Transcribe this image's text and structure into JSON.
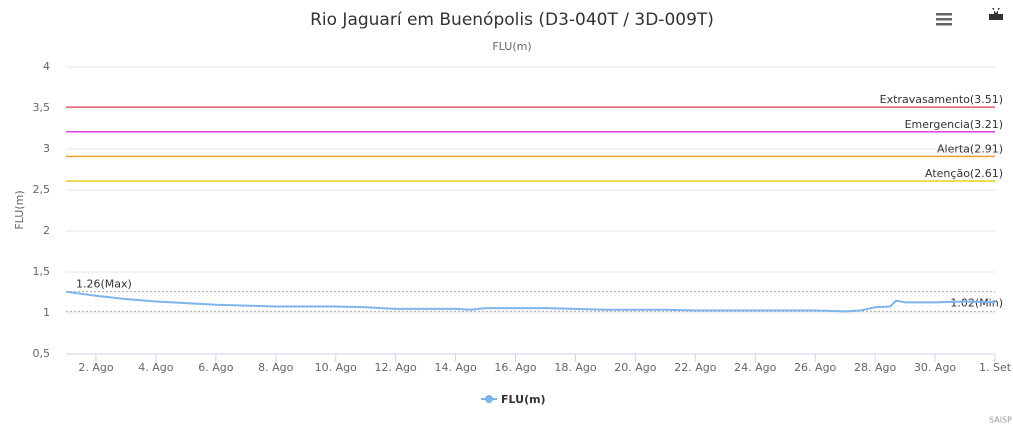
{
  "chart_data": {
    "type": "line",
    "title": "Rio Jaguarí em Buenópolis (D3-040T / 3D-009T)",
    "subtitle": "FLU(m)",
    "y_axis_label": "FLU(m)",
    "credit": "SAISP",
    "xlim": [
      1,
      32
    ],
    "xticks": [
      {
        "value": 2,
        "label": "2. Ago"
      },
      {
        "value": 4,
        "label": "4. Ago"
      },
      {
        "value": 6,
        "label": "6. Ago"
      },
      {
        "value": 8,
        "label": "8. Ago"
      },
      {
        "value": 10,
        "label": "10. Ago"
      },
      {
        "value": 12,
        "label": "12. Ago"
      },
      {
        "value": 14,
        "label": "14. Ago"
      },
      {
        "value": 16,
        "label": "16. Ago"
      },
      {
        "value": 18,
        "label": "18. Ago"
      },
      {
        "value": 20,
        "label": "20. Ago"
      },
      {
        "value": 22,
        "label": "22. Ago"
      },
      {
        "value": 24,
        "label": "24. Ago"
      },
      {
        "value": 26,
        "label": "26. Ago"
      },
      {
        "value": 28,
        "label": "28. Ago"
      },
      {
        "value": 30,
        "label": "30. Ago"
      },
      {
        "value": 32,
        "label": "1. Set"
      }
    ],
    "ylim": [
      0.5,
      4
    ],
    "yticks": [
      {
        "value": 0.5,
        "label": "0,5"
      },
      1,
      {
        "value": 1.5,
        "label": "1,5"
      },
      2,
      {
        "value": 2.5,
        "label": "2,5"
      },
      3,
      {
        "value": 3.5,
        "label": "3,5"
      },
      4
    ],
    "grid": true,
    "plot_lines": [
      {
        "label": "Extravasamento(3.51)",
        "value": 3.51,
        "color": "#e06070"
      },
      {
        "label": "Emergencia(3.21)",
        "value": 3.21,
        "color": "#e040e8"
      },
      {
        "label": "Alerta(2.91)",
        "value": 2.91,
        "color": "#f0a030"
      },
      {
        "label": "Atenção(2.61)",
        "value": 2.61,
        "color": "#e8d020"
      }
    ],
    "extremes": [
      {
        "label": "1.26(Max)",
        "value": 1.26,
        "side": "left"
      },
      {
        "label": "1.02(Min)",
        "value": 1.02,
        "side": "right"
      }
    ],
    "x": [
      1,
      2,
      3,
      4,
      5,
      6,
      7,
      8,
      9,
      10,
      11,
      12,
      13,
      14,
      14.5,
      15,
      16,
      17,
      18,
      19,
      20,
      21,
      22,
      23,
      24,
      25,
      26,
      27,
      27.5,
      28,
      28.5,
      28.7,
      29,
      30,
      31,
      32
    ],
    "series": [
      {
        "name": "FLU(m)",
        "color": "#7cb5ec",
        "values": [
          1.26,
          1.21,
          1.17,
          1.14,
          1.12,
          1.1,
          1.09,
          1.08,
          1.08,
          1.08,
          1.07,
          1.05,
          1.05,
          1.05,
          1.04,
          1.06,
          1.06,
          1.06,
          1.05,
          1.04,
          1.04,
          1.04,
          1.03,
          1.03,
          1.03,
          1.03,
          1.03,
          1.02,
          1.03,
          1.07,
          1.08,
          1.15,
          1.13,
          1.13,
          1.14,
          1.13
        ]
      }
    ]
  }
}
